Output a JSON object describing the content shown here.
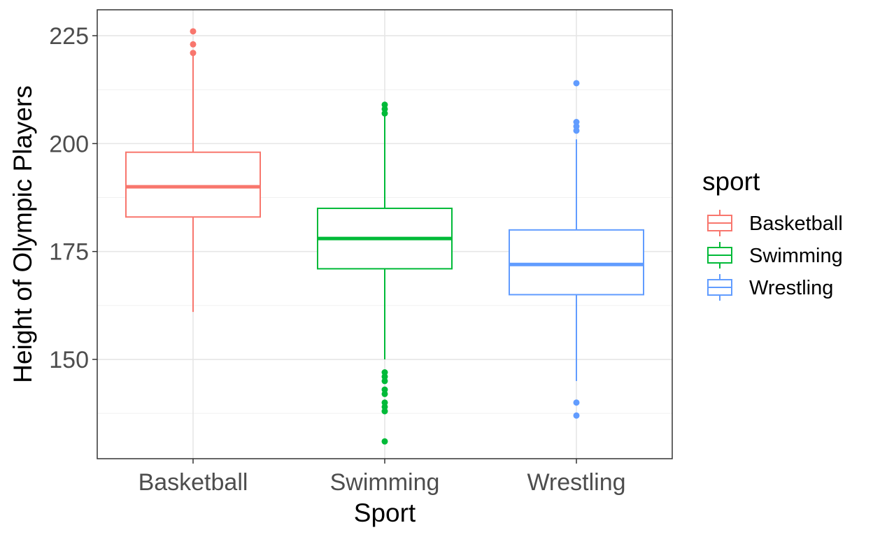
{
  "chart_data": {
    "type": "boxplot",
    "xlabel": "Sport",
    "ylabel": "Height of Olympic Players",
    "ylim": [
      127,
      231
    ],
    "yticks": [
      150,
      175,
      200,
      225
    ],
    "grid": true,
    "legend": {
      "title": "sport",
      "placement": "right"
    },
    "categories": [
      "Basketball",
      "Swimming",
      "Wrestling"
    ],
    "series": [
      {
        "name": "Basketball",
        "color": "#F8766D",
        "whisker_low": 161,
        "q1": 183,
        "median": 190,
        "q3": 198,
        "whisker_high": 221,
        "outliers": [
          226,
          223,
          221
        ]
      },
      {
        "name": "Swimming",
        "color": "#00BA38",
        "whisker_low": 150,
        "q1": 171,
        "median": 178,
        "q3": 185,
        "whisker_high": 207,
        "outliers": [
          209,
          208,
          207,
          147,
          146,
          145,
          143,
          142,
          140,
          139,
          138,
          131
        ]
      },
      {
        "name": "Wrestling",
        "color": "#619CFF",
        "whisker_low": 145,
        "q1": 165,
        "median": 172,
        "q3": 180,
        "whisker_high": 201,
        "outliers": [
          214,
          205,
          204,
          203,
          140,
          137
        ]
      }
    ]
  }
}
